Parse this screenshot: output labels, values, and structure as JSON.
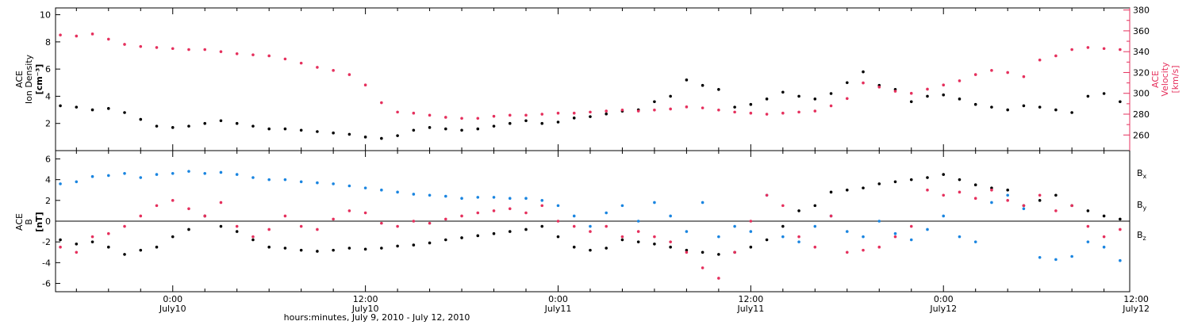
{
  "colors": {
    "black": "#000000",
    "pink": "#e5305d",
    "blue": "#1a85e0"
  },
  "chart_data": [
    {
      "type": "scatter",
      "panel": "top",
      "ylabel_left": [
        "ACE",
        "Ion Density",
        "[cm⁻³]"
      ],
      "ylabel_right": [
        "ACE",
        "Velocity",
        "[km/s]"
      ],
      "ylim_left": [
        0,
        10.5
      ],
      "yticks_left": [
        "2",
        "4",
        "6",
        "8",
        "10"
      ],
      "ylim_right": [
        245,
        382
      ],
      "yticks_right": [
        "260",
        "280",
        "300",
        "320",
        "340",
        "360",
        "380"
      ],
      "xlim_hours": [
        -7.3,
        59.6
      ],
      "series": [
        {
          "axis": "left",
          "color": "#000000",
          "x": [
            -7,
            -6,
            -5,
            -4,
            -3,
            -2,
            -1,
            0,
            1,
            2,
            3,
            4,
            5,
            6,
            7,
            8,
            9,
            10,
            11,
            12,
            13,
            14,
            15,
            16,
            17,
            18,
            19,
            20,
            21,
            22,
            23,
            24,
            25,
            26,
            27,
            28,
            29,
            30,
            31,
            32,
            33,
            34,
            35,
            36,
            37,
            38,
            39,
            40,
            41,
            42,
            43,
            44,
            45,
            46,
            47,
            48,
            49,
            50,
            51,
            52,
            53,
            54,
            55,
            56,
            57,
            58,
            59
          ],
          "y": [
            3.3,
            3.2,
            3.0,
            3.1,
            2.8,
            2.3,
            1.8,
            1.7,
            1.8,
            2.0,
            2.2,
            2.0,
            1.8,
            1.6,
            1.6,
            1.5,
            1.4,
            1.3,
            1.2,
            1.0,
            0.9,
            1.1,
            1.5,
            1.7,
            1.6,
            1.5,
            1.6,
            1.8,
            2.0,
            2.2,
            2.0,
            2.1,
            2.4,
            2.5,
            2.7,
            2.9,
            3.0,
            3.6,
            4.0,
            5.2,
            4.8,
            4.5,
            3.2,
            3.4,
            3.8,
            4.3,
            4.0,
            3.8,
            4.2,
            5.0,
            5.8,
            4.8,
            4.5,
            3.6,
            4.0,
            4.1,
            3.8,
            3.4,
            3.2,
            3.0,
            3.3,
            3.2,
            3.0,
            2.8,
            4.0,
            4.2,
            3.6
          ]
        },
        {
          "axis": "right",
          "color": "#e5305d",
          "x": [
            -7,
            -6,
            -5,
            -4,
            -3,
            -2,
            -1,
            0,
            1,
            2,
            3,
            4,
            5,
            6,
            7,
            8,
            9,
            10,
            11,
            12,
            13,
            14,
            15,
            16,
            17,
            18,
            19,
            20,
            21,
            22,
            23,
            24,
            25,
            26,
            27,
            28,
            29,
            30,
            31,
            32,
            33,
            34,
            35,
            36,
            37,
            38,
            39,
            40,
            41,
            42,
            43,
            44,
            45,
            46,
            47,
            48,
            49,
            50,
            51,
            52,
            53,
            54,
            55,
            56,
            57,
            58,
            59
          ],
          "y": [
            356,
            355,
            357,
            352,
            347,
            345,
            344,
            343,
            342,
            342,
            340,
            338,
            337,
            336,
            333,
            329,
            325,
            322,
            318,
            308,
            291,
            282,
            281,
            279,
            277,
            276,
            276,
            278,
            279,
            279,
            280,
            281,
            281,
            282,
            283,
            284,
            283,
            284,
            285,
            287,
            286,
            284,
            282,
            281,
            280,
            281,
            282,
            283,
            288,
            295,
            310,
            306,
            302,
            300,
            304,
            308,
            312,
            318,
            322,
            320,
            316,
            332,
            336,
            342,
            344,
            343,
            342
          ]
        }
      ]
    },
    {
      "type": "scatter",
      "panel": "bottom",
      "ylabel_left": [
        "ACE",
        "B",
        "[nT]"
      ],
      "ylim": [
        -6.8,
        6.8
      ],
      "yticks": [
        "-6",
        "-4",
        "-2",
        "0",
        "2",
        "4",
        "6"
      ],
      "zero_line": true,
      "xlim_hours": [
        -7.3,
        59.6
      ],
      "xticks": [
        {
          "x": 0,
          "time": "0:00",
          "day": "July10"
        },
        {
          "x": 12,
          "time": "12:00",
          "day": "July10"
        },
        {
          "x": 24,
          "time": "0:00",
          "day": "July11"
        },
        {
          "x": 36,
          "time": "12:00",
          "day": "July11"
        },
        {
          "x": 48,
          "time": "0:00",
          "day": "July12"
        },
        {
          "x": 60,
          "time": "12:00",
          "day": "July12"
        }
      ],
      "xlabel": "hours:minutes, July  9, 2010 - July 12, 2010",
      "series": [
        {
          "name": "B",
          "sub": "x",
          "color": "#000000",
          "x": [
            -7,
            -6,
            -5,
            -4,
            -3,
            -2,
            -1,
            0,
            1,
            2,
            3,
            4,
            5,
            6,
            7,
            8,
            9,
            10,
            11,
            12,
            13,
            14,
            15,
            16,
            17,
            18,
            19,
            20,
            21,
            22,
            23,
            24,
            25,
            26,
            27,
            28,
            29,
            30,
            31,
            32,
            33,
            34,
            35,
            36,
            37,
            38,
            39,
            40,
            41,
            42,
            43,
            44,
            45,
            46,
            47,
            48,
            49,
            50,
            51,
            52,
            53,
            54,
            55,
            56,
            57,
            58,
            59
          ],
          "y": [
            -1.8,
            -2.2,
            -2.0,
            -2.5,
            -3.2,
            -2.8,
            -2.5,
            -1.5,
            -0.8,
            0.5,
            -0.5,
            -1.0,
            -1.8,
            -2.5,
            -2.6,
            -2.8,
            -2.9,
            -2.8,
            -2.6,
            -2.7,
            -2.6,
            -2.4,
            -2.3,
            -2.1,
            -1.8,
            -1.6,
            -1.4,
            -1.2,
            -1.0,
            -0.8,
            -0.5,
            -1.5,
            -2.5,
            -2.8,
            -2.6,
            -1.8,
            -2.0,
            -2.2,
            -2.5,
            -2.8,
            -3.0,
            -3.2,
            -3.0,
            -2.5,
            -1.8,
            -0.5,
            1.0,
            1.5,
            2.8,
            3.0,
            3.2,
            3.6,
            3.8,
            4.0,
            4.2,
            4.5,
            4.0,
            3.5,
            3.2,
            3.0,
            1.5,
            2.0,
            2.5,
            1.5,
            1.0,
            0.5,
            0.2
          ]
        },
        {
          "name": "B",
          "sub": "y",
          "color": "#1a85e0",
          "x": [
            -7,
            -6,
            -5,
            -4,
            -3,
            -2,
            -1,
            0,
            1,
            2,
            3,
            4,
            5,
            6,
            7,
            8,
            9,
            10,
            11,
            12,
            13,
            14,
            15,
            16,
            17,
            18,
            19,
            20,
            21,
            22,
            23,
            24,
            25,
            26,
            27,
            28,
            29,
            30,
            31,
            32,
            33,
            34,
            35,
            36,
            37,
            38,
            39,
            40,
            41,
            42,
            43,
            44,
            45,
            46,
            47,
            48,
            49,
            50,
            51,
            52,
            53,
            54,
            55,
            56,
            57,
            58,
            59
          ],
          "y": [
            3.6,
            3.8,
            4.3,
            4.4,
            4.6,
            4.2,
            4.5,
            4.6,
            4.8,
            4.6,
            4.7,
            4.5,
            4.2,
            4.0,
            4.0,
            3.8,
            3.7,
            3.6,
            3.4,
            3.2,
            3.0,
            2.8,
            2.6,
            2.5,
            2.4,
            2.2,
            2.3,
            2.3,
            2.2,
            2.2,
            2.0,
            1.5,
            0.5,
            -0.5,
            0.8,
            1.5,
            0.0,
            1.8,
            0.5,
            -1.0,
            1.8,
            -1.5,
            -0.5,
            -1.0,
            2.5,
            -1.5,
            -2.0,
            -0.5,
            0.5,
            -1.0,
            -1.5,
            0.0,
            -1.2,
            -1.8,
            -0.8,
            0.5,
            -1.5,
            -2.0,
            1.8,
            2.5,
            1.2,
            -3.5,
            -3.7,
            -3.4,
            -2.0,
            -2.5,
            -3.8
          ]
        },
        {
          "name": "B",
          "sub": "z",
          "color": "#e5305d",
          "x": [
            -7,
            -6,
            -5,
            -4,
            -3,
            -2,
            -1,
            0,
            1,
            2,
            3,
            4,
            5,
            6,
            7,
            8,
            9,
            10,
            11,
            12,
            13,
            14,
            15,
            16,
            17,
            18,
            19,
            20,
            21,
            22,
            23,
            24,
            25,
            26,
            27,
            28,
            29,
            30,
            31,
            32,
            33,
            34,
            35,
            36,
            37,
            38,
            39,
            40,
            41,
            42,
            43,
            44,
            45,
            46,
            47,
            48,
            49,
            50,
            51,
            52,
            53,
            54,
            55,
            56,
            57,
            58,
            59
          ],
          "y": [
            -2.5,
            -3.0,
            -1.5,
            -1.2,
            -0.5,
            0.5,
            1.5,
            2.0,
            1.2,
            0.5,
            1.8,
            -0.5,
            -1.5,
            -0.8,
            0.5,
            -0.5,
            -0.8,
            0.2,
            1.0,
            0.8,
            -0.2,
            -0.5,
            0.0,
            -0.2,
            0.2,
            0.5,
            0.8,
            1.0,
            1.2,
            0.8,
            1.5,
            0.0,
            -0.5,
            -1.0,
            -0.5,
            -1.5,
            -1.0,
            -1.5,
            -2.0,
            -3.0,
            -4.5,
            -5.5,
            -3.0,
            0.0,
            2.5,
            1.5,
            -1.5,
            -2.5,
            0.5,
            -3.0,
            -2.8,
            -2.5,
            -1.5,
            -0.5,
            3.0,
            2.5,
            2.8,
            2.2,
            3.0,
            2.0,
            1.5,
            2.5,
            1.0,
            1.5,
            -0.5,
            -1.5,
            -0.8
          ]
        }
      ]
    }
  ]
}
